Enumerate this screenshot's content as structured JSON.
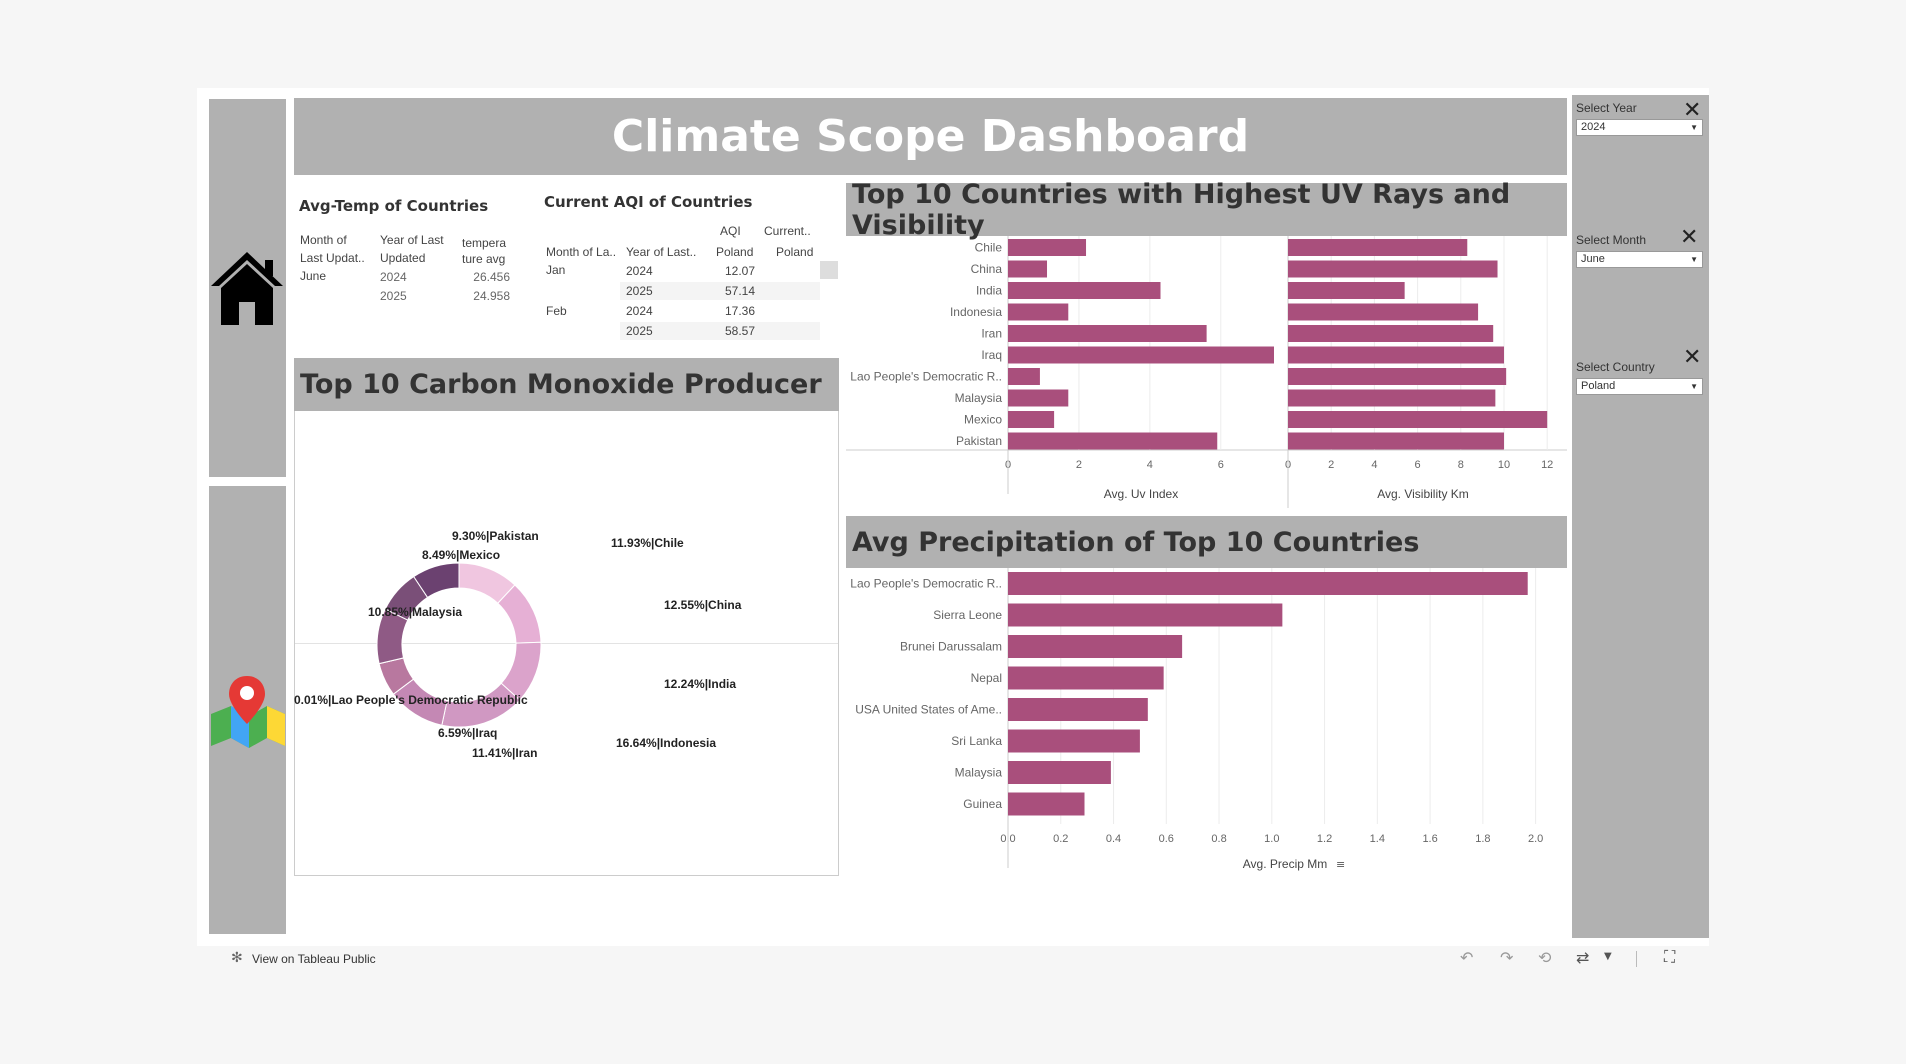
{
  "dashboard": {
    "title": "Climate Scope Dashboard"
  },
  "colors": {
    "bar": "#a94f7c",
    "panel_grey": "#b1b1b1",
    "donut": [
      "#f0c6e0",
      "#e6b0d5",
      "#dba3cb",
      "#d098c2",
      "#c488b4",
      "#b8789f",
      "#a56b97",
      "#8f5a85",
      "#7a4f78",
      "#6b4170"
    ]
  },
  "icons": {
    "home": "home-icon",
    "map": "map-pin-icon"
  },
  "avg_temp": {
    "title": "Avg-Temp of Countries",
    "headers": [
      "Month of Last Updat..",
      "Year of Last Updated",
      "tempera ture avg"
    ],
    "header_lines": [
      [
        "Month of",
        "Last Updat.."
      ],
      [
        "Year of Last",
        "Updated"
      ],
      [
        "tempera",
        "ture avg"
      ]
    ],
    "rows": [
      {
        "month": "June",
        "year": "2024",
        "value": "26.456"
      },
      {
        "month": "",
        "year": "2025",
        "value": "24.958"
      }
    ]
  },
  "aqi": {
    "title": "Current AQI of Countries",
    "header_top": [
      "AQI",
      "Current.."
    ],
    "headers": [
      "Month of La..",
      "Year of Last..",
      "Poland",
      "Poland"
    ],
    "rows": [
      {
        "month": "Jan",
        "year": "2024",
        "value": "12.07"
      },
      {
        "month": "",
        "year": "2025",
        "value": "57.14"
      },
      {
        "month": "Feb",
        "year": "2024",
        "value": "17.36"
      },
      {
        "month": "",
        "year": "2025",
        "value": "58.57"
      }
    ]
  },
  "co_section": {
    "title": "Top 10 Carbon Monoxide Producer"
  },
  "uv_section": {
    "title": "Top 10 Countries with Highest UV Rays and Visibility"
  },
  "precip_section": {
    "title": "Avg Precipitation of Top 10 Countries"
  },
  "filters": [
    {
      "label": "Select Year",
      "value": "2024"
    },
    {
      "label": "Select Month",
      "value": "June"
    },
    {
      "label": "Select Country",
      "value": "Poland"
    }
  ],
  "footer": {
    "view_link": "View on Tableau Public"
  },
  "chart_data": [
    {
      "type": "pie",
      "title": "Top 10 Carbon Monoxide Producer",
      "slices": [
        {
          "label": "11.93%|Chile",
          "value": 11.93
        },
        {
          "label": "12.55%|China",
          "value": 12.55
        },
        {
          "label": "12.24%|India",
          "value": 12.24
        },
        {
          "label": "16.64%|Indonesia",
          "value": 16.64
        },
        {
          "label": "11.41%|Iran",
          "value": 11.41
        },
        {
          "label": "6.59%|Iraq",
          "value": 6.59
        },
        {
          "label": "0.01%|Lao People's Democratic Republic",
          "value": 0.01
        },
        {
          "label": "10.85%|Malaysia",
          "value": 10.85
        },
        {
          "label": "8.49%|Mexico",
          "value": 8.49
        },
        {
          "label": "9.30%|Pakistan",
          "value": 9.3
        }
      ]
    },
    {
      "type": "bar",
      "orientation": "horizontal",
      "categories": [
        "Chile",
        "China",
        "India",
        "Indonesia",
        "Iran",
        "Iraq",
        "Lao People's Democratic R..",
        "Malaysia",
        "Mexico",
        "Pakistan"
      ],
      "xlabel": "Avg. Uv Index",
      "xlim": [
        0,
        7.5
      ],
      "ticks": [
        "0",
        "2",
        "4",
        "6"
      ],
      "tick_values": [
        0,
        2,
        4,
        6
      ],
      "values": [
        2.2,
        1.1,
        4.3,
        1.7,
        5.6,
        7.5,
        0.9,
        1.7,
        1.3,
        5.9
      ]
    },
    {
      "type": "bar",
      "orientation": "horizontal",
      "categories": [
        "Chile",
        "China",
        "India",
        "Indonesia",
        "Iran",
        "Iraq",
        "Lao People's Democratic R..",
        "Malaysia",
        "Mexico",
        "Pakistan"
      ],
      "xlabel": "Avg. Visibility Km",
      "xlim": [
        0,
        12.5
      ],
      "ticks": [
        "0",
        "2",
        "4",
        "6",
        "8",
        "10",
        "12"
      ],
      "tick_values": [
        0,
        2,
        4,
        6,
        8,
        10,
        12
      ],
      "values": [
        8.3,
        9.7,
        5.4,
        8.8,
        9.5,
        10.0,
        10.1,
        9.6,
        12.0,
        10.0
      ]
    },
    {
      "type": "bar",
      "orientation": "horizontal",
      "categories": [
        "Lao People's Democratic R..",
        "Sierra Leone",
        "Brunei Darussalam",
        "Nepal",
        "USA United States of Ame..",
        "Sri Lanka",
        "Malaysia",
        "Guinea"
      ],
      "xlabel": "Avg. Precip Mm",
      "xlim": [
        0,
        2.1
      ],
      "ticks": [
        "0.0",
        "0.2",
        "0.4",
        "0.6",
        "0.8",
        "1.0",
        "1.2",
        "1.4",
        "1.6",
        "1.8",
        "2.0"
      ],
      "tick_values": [
        0,
        0.2,
        0.4,
        0.6,
        0.8,
        1.0,
        1.2,
        1.4,
        1.6,
        1.8,
        2.0
      ],
      "values": [
        1.97,
        1.04,
        0.66,
        0.59,
        0.53,
        0.5,
        0.39,
        0.29
      ]
    }
  ]
}
